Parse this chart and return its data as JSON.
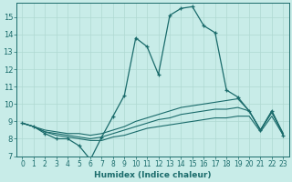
{
  "xlabel": "Humidex (Indice chaleur)",
  "bg_color": "#c8ece8",
  "grid_color": "#afd8d2",
  "line_color": "#1a6b6b",
  "xlim": [
    -0.5,
    23.5
  ],
  "ylim": [
    7,
    15.8
  ],
  "yticks": [
    7,
    8,
    9,
    10,
    11,
    12,
    13,
    14,
    15
  ],
  "xticks": [
    0,
    1,
    2,
    3,
    4,
    5,
    6,
    7,
    8,
    9,
    10,
    11,
    12,
    13,
    14,
    15,
    16,
    17,
    18,
    19,
    20,
    21,
    22,
    23
  ],
  "series": [
    {
      "x": [
        0,
        1,
        2,
        3,
        4,
        5,
        6,
        7,
        8,
        9,
        10,
        11,
        12,
        13,
        14,
        15,
        16,
        17,
        18,
        19,
        20,
        21,
        22,
        23
      ],
      "y": [
        8.9,
        8.7,
        8.3,
        8.0,
        8.0,
        7.6,
        6.8,
        8.1,
        9.3,
        10.5,
        13.8,
        13.3,
        11.7,
        15.1,
        15.5,
        15.6,
        14.5,
        14.1,
        10.8,
        10.4,
        9.6,
        8.5,
        9.6,
        8.2
      ],
      "marker": true
    },
    {
      "x": [
        0,
        1,
        2,
        3,
        4,
        5,
        6,
        7,
        8,
        9,
        10,
        11,
        12,
        13,
        14,
        15,
        16,
        17,
        18,
        19,
        20,
        21,
        22,
        23
      ],
      "y": [
        8.9,
        8.7,
        8.5,
        8.4,
        8.3,
        8.3,
        8.2,
        8.3,
        8.5,
        8.7,
        9.0,
        9.2,
        9.4,
        9.6,
        9.8,
        9.9,
        10.0,
        10.1,
        10.2,
        10.3,
        9.6,
        8.5,
        9.6,
        8.3
      ],
      "marker": false
    },
    {
      "x": [
        0,
        1,
        2,
        3,
        4,
        5,
        6,
        7,
        8,
        9,
        10,
        11,
        12,
        13,
        14,
        15,
        16,
        17,
        18,
        19,
        20,
        21,
        22,
        23
      ],
      "y": [
        8.9,
        8.7,
        8.4,
        8.3,
        8.2,
        8.1,
        8.0,
        8.1,
        8.3,
        8.5,
        8.7,
        8.9,
        9.1,
        9.2,
        9.4,
        9.5,
        9.6,
        9.7,
        9.7,
        9.8,
        9.6,
        8.5,
        9.5,
        8.3
      ],
      "marker": false
    },
    {
      "x": [
        0,
        1,
        2,
        3,
        4,
        5,
        6,
        7,
        8,
        9,
        10,
        11,
        12,
        13,
        14,
        15,
        16,
        17,
        18,
        19,
        20,
        21,
        22,
        23
      ],
      "y": [
        8.9,
        8.7,
        8.4,
        8.2,
        8.1,
        8.0,
        7.9,
        7.9,
        8.1,
        8.2,
        8.4,
        8.6,
        8.7,
        8.8,
        8.9,
        9.0,
        9.1,
        9.2,
        9.2,
        9.3,
        9.3,
        8.4,
        9.3,
        8.2
      ],
      "marker": false
    }
  ]
}
